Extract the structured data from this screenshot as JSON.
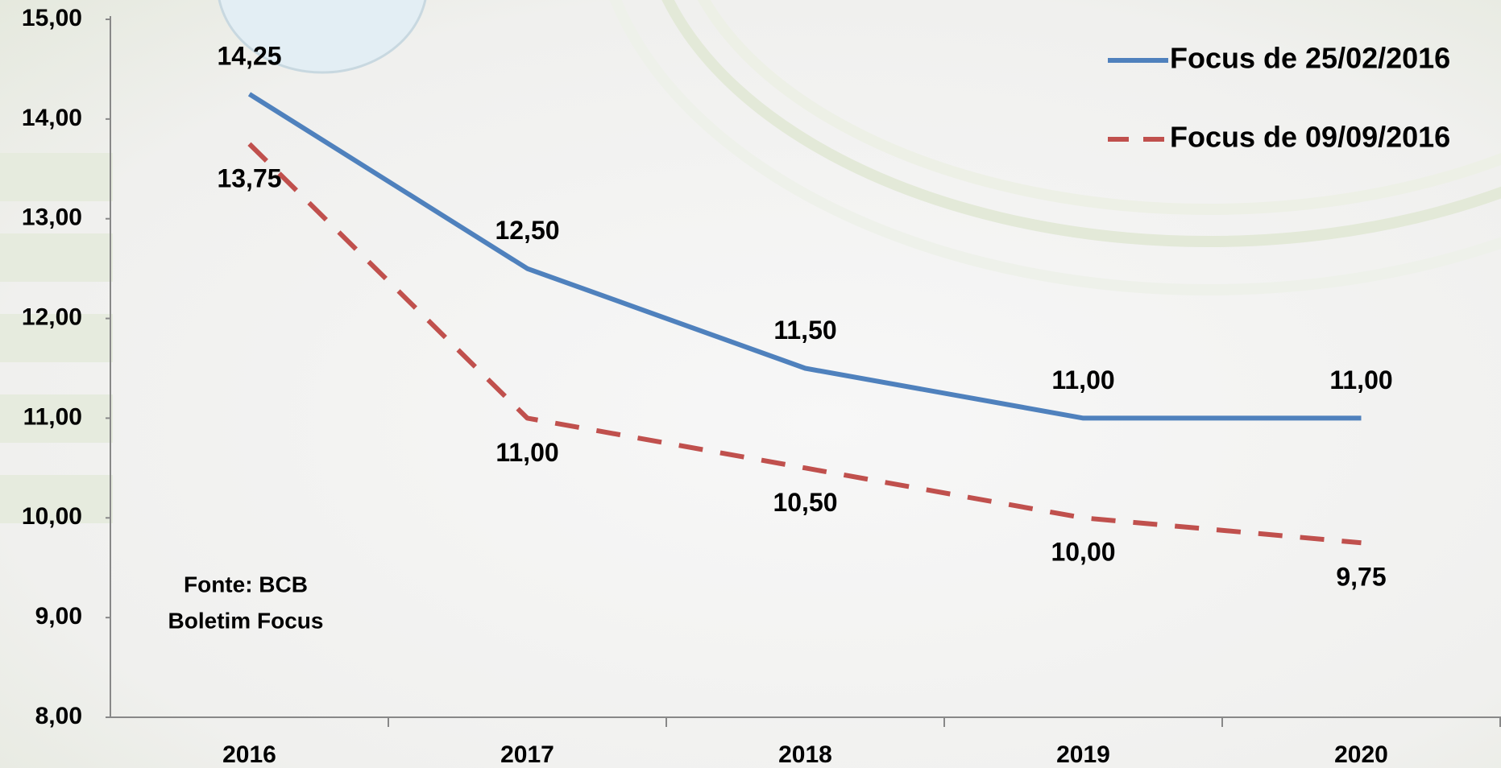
{
  "chart_data": {
    "type": "line",
    "categories": [
      "2016",
      "2017",
      "2018",
      "2019",
      "2020"
    ],
    "series": [
      {
        "name": "Focus de 25/02/2016",
        "color": "#4f81bd",
        "dashed": false,
        "values": [
          14.25,
          12.5,
          11.5,
          11,
          11
        ],
        "value_labels": [
          "14,25",
          "12,50",
          "11,50",
          "11,00",
          "11,00"
        ]
      },
      {
        "name": "Focus de 09/09/2016",
        "color": "#c0504d",
        "dashed": true,
        "values": [
          13.75,
          11,
          10.5,
          10,
          9.75
        ],
        "value_labels": [
          "13,75",
          "11,00",
          "10,50",
          "10,00",
          "9,75"
        ]
      }
    ],
    "ylim": [
      8,
      15
    ],
    "yticks": [
      {
        "value": 8,
        "label": "8,00"
      },
      {
        "value": 9,
        "label": "9,00"
      },
      {
        "value": 10,
        "label": "10,00"
      },
      {
        "value": 11,
        "label": "11,00"
      },
      {
        "value": 12,
        "label": "12,00"
      },
      {
        "value": 13,
        "label": "13,00"
      },
      {
        "value": 14,
        "label": "14,00"
      },
      {
        "value": 15,
        "label": "15,00"
      }
    ],
    "grid": false,
    "legend": "top-right",
    "annotations": [
      "Fonte: BCB",
      "Boletim Focus"
    ]
  }
}
